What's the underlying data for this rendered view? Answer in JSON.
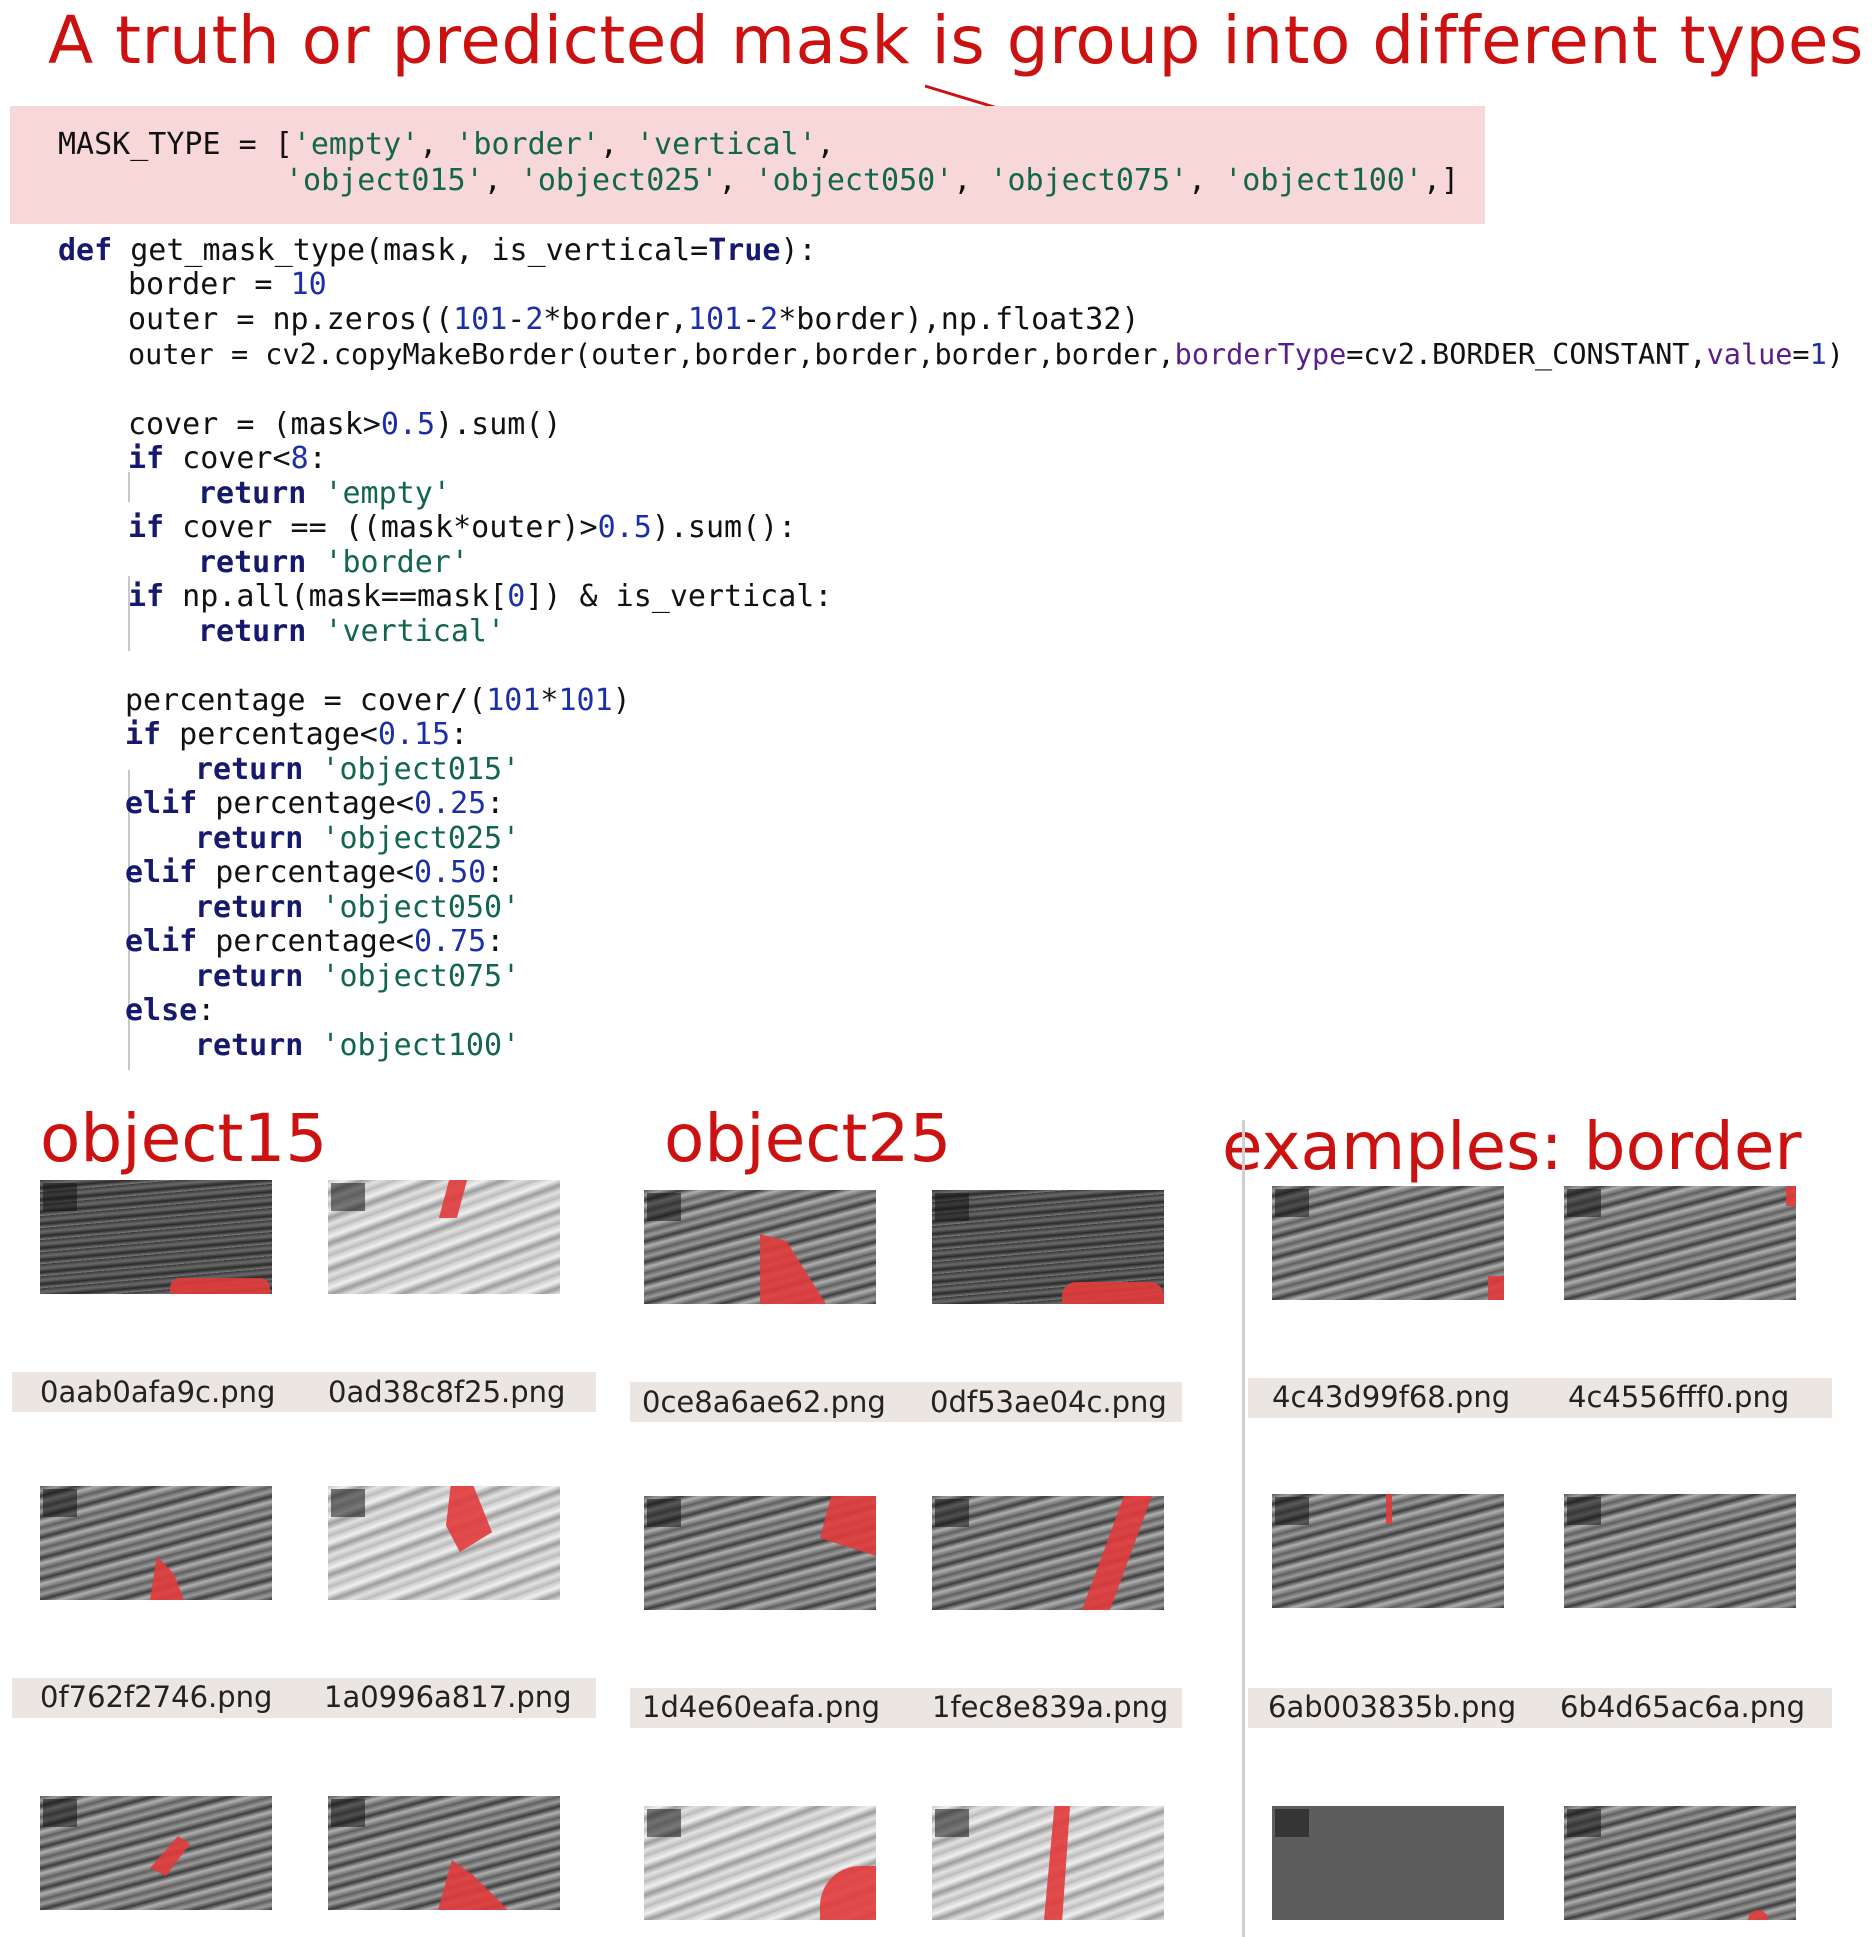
{
  "headline": "A truth or predicted mask is group into different types",
  "code": {
    "mask_type": {
      "l1": {
        "name": "MASK_TYPE",
        "eq": " = [",
        "s1": "'empty'",
        "c1": ", ",
        "s2": "'border'",
        "c2": ", ",
        "s3": "'vertical'",
        "c3": ","
      },
      "l2": {
        "s1": "'object015'",
        "c1": ", ",
        "s2": "'object025'",
        "c2": ", ",
        "s3": "'object050'",
        "c3": ", ",
        "s4": "'object075'",
        "c4": ", ",
        "s5": "'object100'",
        "end": ",]"
      }
    },
    "fn": {
      "def_kw": "def",
      "signature": " get_mask_type(mask, is_vertical=",
      "true_kw": "True",
      "sig_end": "):",
      "border_a": "border = ",
      "border_v": "10",
      "outer1_a": "outer = np.zeros((",
      "outer1_n1": "101",
      "outer1_b": "-",
      "outer1_n2": "2",
      "outer1_c": "*border,",
      "outer1_n3": "101",
      "outer1_d": "-",
      "outer1_n4": "2",
      "outer1_e": "*border),np.float32)",
      "outer2_a": "outer = cv2.copyMakeBorder(outer,border,border,border,border,",
      "outer2_p1": "borderType",
      "outer2_b": "=cv2.BORDER_CONSTANT,",
      "outer2_p2": "value",
      "outer2_c": "=",
      "outer2_n": "1",
      "outer2_d": ")",
      "cover_a": "cover = (mask>",
      "cover_n": "0.5",
      "cover_b": ").sum()",
      "if1_kw": "if",
      "if1_a": " cover<",
      "if1_n": "8",
      "if1_b": ":",
      "ret_kw": "return",
      "ret_empty": "'empty'",
      "if2_a": " cover == ((mask*outer)>",
      "if2_n": "0.5",
      "if2_b": ").sum():",
      "ret_border": "'border'",
      "if3_a": " np.all(mask==mask[",
      "if3_n": "0",
      "if3_b": "]) & is_vertical:",
      "ret_vertical": "'vertical'",
      "pct_a": "percentage = cover/(",
      "pct_n1": "101",
      "pct_b": "*",
      "pct_n2": "101",
      "pct_c": ")",
      "pif_a": " percentage<",
      "pif_n": "0.15",
      "colon": ":",
      "ret_o15": "'object015'",
      "elif_kw": "elif",
      "pe1_n": "0.25",
      "ret_o25": "'object025'",
      "pe2_n": "0.50",
      "ret_o50": "'object050'",
      "pe3_n": "0.75",
      "ret_o75": "'object075'",
      "else_kw": "else",
      "ret_o100": "'object100'"
    }
  },
  "sections": {
    "object15": "object15",
    "object25": "object25",
    "border": "examples: border"
  },
  "captions": {
    "obj15": [
      "0aab0afa9c.png",
      "0ad38c8f25.png",
      "0f762f2746.png",
      "1a0996a817.png"
    ],
    "obj25": [
      "0ce8a6ae62.png",
      "0df53ae04c.png",
      "1d4e60eafa.png",
      "1fec8e839a.png"
    ],
    "border": [
      "4c43d99f68.png",
      "4c4556fff0.png",
      "6ab003835b.png",
      "6b4d65ac6a.png"
    ]
  },
  "colors": {
    "title_red": "#cc1111",
    "highlight": "#f7d7d7",
    "mask_red": "#e23b3b"
  }
}
